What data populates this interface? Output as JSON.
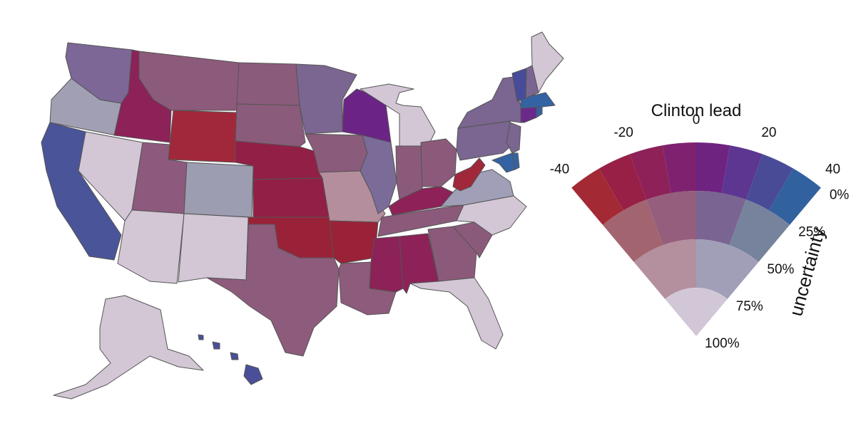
{
  "palette": {
    "c_m40_u0": "#a32a35",
    "c_m30_u0": "#981f45",
    "c_m20_u0": "#8d2158",
    "c_m10_u0": "#7e2270",
    "c_0_u0": "#6e2381",
    "c_10_u0": "#66278a",
    "c_20_u0": "#5c3690",
    "c_30_u0": "#4a4b97",
    "c_40_u0": "#32619f",
    "c_m40_u1": "#a26570",
    "c_m20_u1": "#955e7c",
    "c_0_u1": "#8a5c84",
    "c_20_u1": "#7a6592",
    "c_40_u1": "#77839d",
    "c_m_u2": "#b48f9d",
    "c_p_u2": "#a09fb7",
    "c_u3": "#d1c7d7",
    "outline": "#555555"
  },
  "map": {
    "states": [
      {
        "name": "WA",
        "fill": "#7c6796"
      },
      {
        "name": "OR",
        "fill": "#a09fb3"
      },
      {
        "name": "CA",
        "fill": "#4a5498"
      },
      {
        "name": "ID",
        "fill": "#8c2258"
      },
      {
        "name": "NV",
        "fill": "#d3c7d6"
      },
      {
        "name": "MT",
        "fill": "#8c5a7a"
      },
      {
        "name": "WY",
        "fill": "#a1283a"
      },
      {
        "name": "UT",
        "fill": "#8d5a7d"
      },
      {
        "name": "AZ",
        "fill": "#d3c7d6"
      },
      {
        "name": "CO",
        "fill": "#9d9db1"
      },
      {
        "name": "NM",
        "fill": "#d3c7d6"
      },
      {
        "name": "ND",
        "fill": "#8b5b7b"
      },
      {
        "name": "SD",
        "fill": "#8b5b7b"
      },
      {
        "name": "NE",
        "fill": "#921f46"
      },
      {
        "name": "KS",
        "fill": "#921f46"
      },
      {
        "name": "OK",
        "fill": "#9a2238"
      },
      {
        "name": "TX",
        "fill": "#8d5b7b"
      },
      {
        "name": "MN",
        "fill": "#7a6690"
      },
      {
        "name": "IA",
        "fill": "#8b5b7b"
      },
      {
        "name": "MO",
        "fill": "#b48e9c"
      },
      {
        "name": "AR",
        "fill": "#9a2238"
      },
      {
        "name": "LA",
        "fill": "#8d5b7b"
      },
      {
        "name": "WI",
        "fill": "#6b2486"
      },
      {
        "name": "IL",
        "fill": "#7a6b98"
      },
      {
        "name": "MI",
        "fill": "#d3c7d6"
      },
      {
        "name": "IN",
        "fill": "#8b5a7a"
      },
      {
        "name": "OH",
        "fill": "#8b5a7a"
      },
      {
        "name": "KY",
        "fill": "#8e2258"
      },
      {
        "name": "TN",
        "fill": "#8b5a7a"
      },
      {
        "name": "MS",
        "fill": "#8c2258"
      },
      {
        "name": "AL",
        "fill": "#8c2258"
      },
      {
        "name": "GA",
        "fill": "#8b5a7a"
      },
      {
        "name": "FL",
        "fill": "#d3c7d6"
      },
      {
        "name": "SC",
        "fill": "#8b5a7a"
      },
      {
        "name": "NC",
        "fill": "#d3c7d6"
      },
      {
        "name": "VA",
        "fill": "#a09fb7"
      },
      {
        "name": "WV",
        "fill": "#a1283a"
      },
      {
        "name": "PA",
        "fill": "#7a6690"
      },
      {
        "name": "NY",
        "fill": "#7a6690"
      },
      {
        "name": "NJ",
        "fill": "#7a6690"
      },
      {
        "name": "MD",
        "fill": "#3463a3"
      },
      {
        "name": "DE",
        "fill": "#3463a3"
      },
      {
        "name": "CT",
        "fill": "#6b2a8a"
      },
      {
        "name": "RI",
        "fill": "#3463a3"
      },
      {
        "name": "MA",
        "fill": "#3463a3"
      },
      {
        "name": "VT",
        "fill": "#464c99"
      },
      {
        "name": "NH",
        "fill": "#7a6690"
      },
      {
        "name": "ME",
        "fill": "#d3c7d6"
      },
      {
        "name": "AK",
        "fill": "#d3c7d6"
      },
      {
        "name": "HI",
        "fill": "#4a4f98"
      }
    ]
  },
  "legend": {
    "title": "Clinton lead",
    "lead_ticks": [
      "-40",
      "-20",
      "0",
      "20",
      "40"
    ],
    "lead_values": [
      -40,
      -20,
      0,
      20,
      40
    ],
    "uncertainty_label": "uncertainty",
    "uncertainty_ticks": [
      "0%",
      "25%",
      "50%",
      "75%",
      "100%"
    ],
    "uncertainty_values": [
      0,
      25,
      50,
      75,
      100
    ],
    "lead_range": [
      -40,
      40
    ],
    "uncertainty_range": [
      0,
      100
    ],
    "cells": [
      {
        "uncertainty": 0,
        "lead_from": -40,
        "lead_to": -30,
        "fill": "#a32a35"
      },
      {
        "uncertainty": 0,
        "lead_from": -30,
        "lead_to": -20,
        "fill": "#981f45"
      },
      {
        "uncertainty": 0,
        "lead_from": -20,
        "lead_to": -10,
        "fill": "#8d2158"
      },
      {
        "uncertainty": 0,
        "lead_from": -10,
        "lead_to": 0,
        "fill": "#7e2270"
      },
      {
        "uncertainty": 0,
        "lead_from": 0,
        "lead_to": 10,
        "fill": "#6e2381"
      },
      {
        "uncertainty": 0,
        "lead_from": 10,
        "lead_to": 20,
        "fill": "#5c3690"
      },
      {
        "uncertainty": 0,
        "lead_from": 20,
        "lead_to": 30,
        "fill": "#4a4b97"
      },
      {
        "uncertainty": 0,
        "lead_from": 30,
        "lead_to": 40,
        "fill": "#32619f"
      },
      {
        "uncertainty": 1,
        "lead_from": -40,
        "lead_to": -20,
        "fill": "#a26570"
      },
      {
        "uncertainty": 1,
        "lead_from": -20,
        "lead_to": 0,
        "fill": "#955e7c"
      },
      {
        "uncertainty": 1,
        "lead_from": 0,
        "lead_to": 20,
        "fill": "#7a6592"
      },
      {
        "uncertainty": 1,
        "lead_from": 20,
        "lead_to": 40,
        "fill": "#77839d"
      },
      {
        "uncertainty": 2,
        "lead_from": -40,
        "lead_to": 0,
        "fill": "#b48f9d"
      },
      {
        "uncertainty": 2,
        "lead_from": 0,
        "lead_to": 40,
        "fill": "#a09fb7"
      },
      {
        "uncertainty": 3,
        "lead_from": -40,
        "lead_to": 40,
        "fill": "#d1c7d7"
      }
    ]
  }
}
